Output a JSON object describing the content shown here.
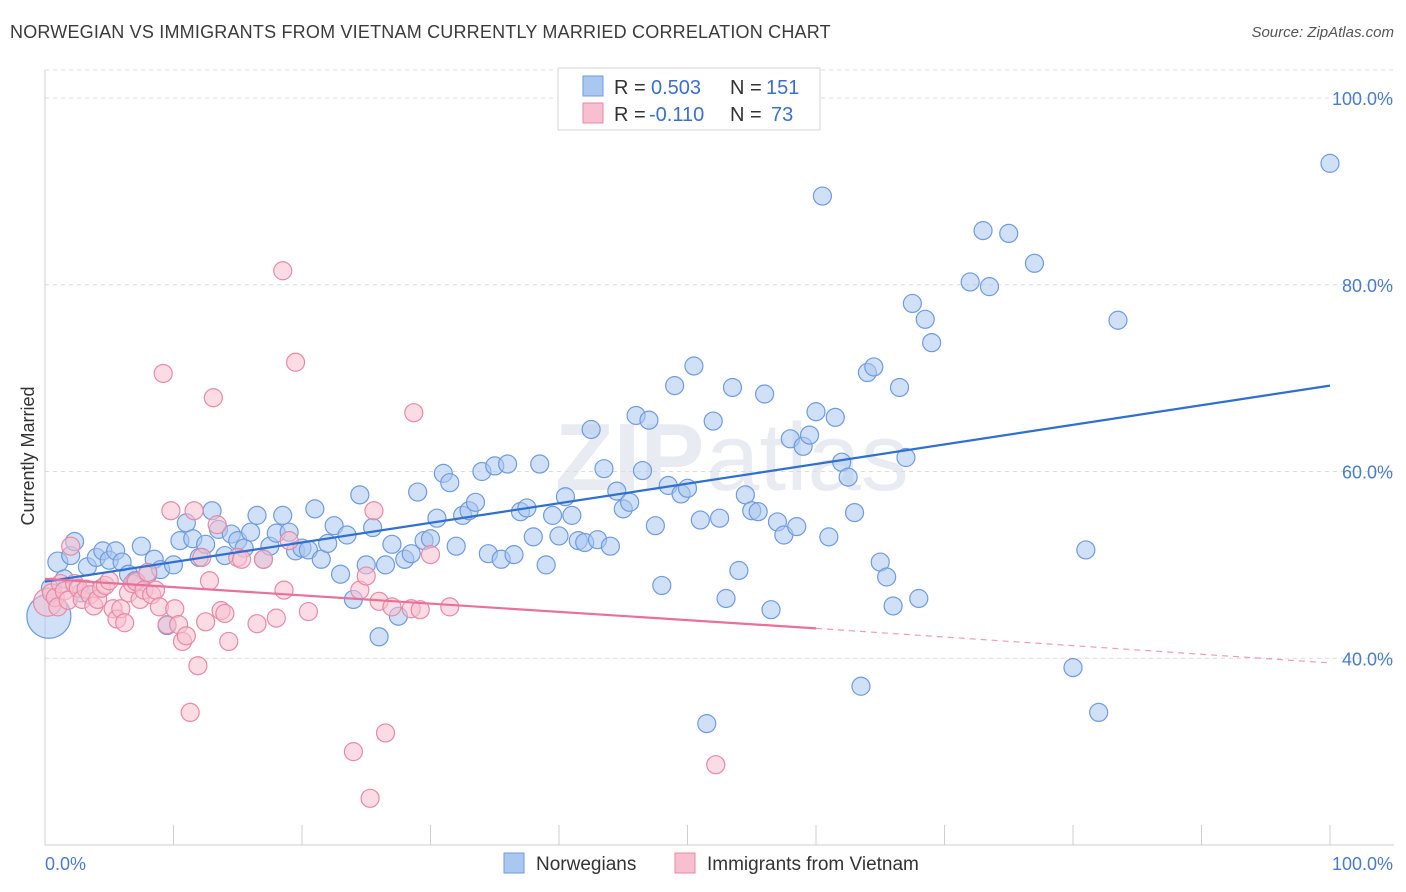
{
  "header": {
    "title": "NORWEGIAN VS IMMIGRANTS FROM VIETNAM CURRENTLY MARRIED CORRELATION CHART",
    "source": "Source: ZipAtlas.com"
  },
  "watermark": {
    "part1": "ZIP",
    "part2": "atlas"
  },
  "legend": {
    "rows": [
      {
        "r_label": "R =",
        "r_value": "0.503",
        "n_label": "N =",
        "n_value": "151",
        "color": "#a9c7f0",
        "stroke": "#6f9be0"
      },
      {
        "r_label": "R =",
        "r_value": "-0.110",
        "n_label": "N =",
        "n_value": "73",
        "color": "#f8bfd0",
        "stroke": "#e68aa6"
      }
    ]
  },
  "bottom_legend": [
    {
      "label": "Norwegians",
      "color": "#a9c7f0",
      "stroke": "#6f9be0"
    },
    {
      "label": "Immigrants from Vietnam",
      "color": "#f8bfd0",
      "stroke": "#e68aa6"
    }
  ],
  "chart_data": {
    "type": "scatter",
    "title": "NORWEGIAN VS IMMIGRANTS FROM VIETNAM CURRENTLY MARRIED CORRELATION CHART",
    "xlabel": "",
    "ylabel": "Currently Married",
    "x_tick_labels": [
      "0.0%",
      "100.0%"
    ],
    "y_tick_labels": [
      "40.0%",
      "60.0%",
      "80.0%",
      "100.0%"
    ],
    "y_ticks": [
      40,
      60,
      80,
      100
    ],
    "xlim": [
      0,
      100
    ],
    "ylim": [
      20,
      103
    ],
    "grid": true,
    "legend_position": "top-center",
    "series": [
      {
        "name": "Norwegians",
        "color": "#a9c7f0",
        "stroke": "#6f9be0",
        "trend": {
          "x": [
            0,
            100
          ],
          "y": [
            48.2,
            69.2
          ],
          "color": "#2e6fd1"
        },
        "points": [
          [
            0.3,
            44.5,
            22
          ],
          [
            0.5,
            47.5,
            10
          ],
          [
            1.0,
            50.3,
            10
          ],
          [
            1.5,
            48.5,
            9
          ],
          [
            2.0,
            51.0,
            9
          ],
          [
            2.3,
            52.5,
            9
          ],
          [
            2.8,
            47.0,
            9
          ],
          [
            3.3,
            49.8,
            9
          ],
          [
            4.0,
            50.8,
            9
          ],
          [
            4.5,
            51.5,
            9
          ],
          [
            5.0,
            50.5,
            9
          ],
          [
            5.5,
            51.5,
            9
          ],
          [
            6.0,
            50.3,
            9
          ],
          [
            6.5,
            49.0,
            9
          ],
          [
            7.0,
            48.3,
            9
          ],
          [
            7.5,
            52.0,
            9
          ],
          [
            8.0,
            49.0,
            9
          ],
          [
            8.5,
            50.6,
            9
          ],
          [
            9.0,
            49.5,
            9
          ],
          [
            9.5,
            43.5,
            9
          ],
          [
            10.0,
            50.0,
            9
          ],
          [
            10.5,
            52.6,
            9
          ],
          [
            11.0,
            54.5,
            9
          ],
          [
            11.5,
            52.8,
            9
          ],
          [
            12.0,
            50.8,
            9
          ],
          [
            12.5,
            52.2,
            9
          ],
          [
            13.0,
            55.8,
            9
          ],
          [
            13.5,
            53.8,
            9
          ],
          [
            14.0,
            51.0,
            9
          ],
          [
            14.5,
            53.3,
            9
          ],
          [
            15.0,
            52.6,
            9
          ],
          [
            15.5,
            51.8,
            9
          ],
          [
            16.0,
            53.5,
            9
          ],
          [
            16.5,
            55.3,
            9
          ],
          [
            17.0,
            50.6,
            9
          ],
          [
            17.5,
            52.0,
            9
          ],
          [
            18.0,
            53.4,
            9
          ],
          [
            18.5,
            55.3,
            9
          ],
          [
            19.0,
            53.5,
            9
          ],
          [
            19.5,
            51.5,
            9
          ],
          [
            20.0,
            51.8,
            9
          ],
          [
            20.5,
            51.6,
            9
          ],
          [
            21.0,
            56.0,
            9
          ],
          [
            21.5,
            50.6,
            9
          ],
          [
            22.0,
            52.3,
            9
          ],
          [
            22.5,
            54.2,
            9
          ],
          [
            23.0,
            49.0,
            9
          ],
          [
            23.5,
            53.2,
            9
          ],
          [
            24.0,
            46.3,
            9
          ],
          [
            24.5,
            57.5,
            9
          ],
          [
            25.0,
            50.0,
            9
          ],
          [
            25.5,
            54.0,
            9
          ],
          [
            26.0,
            42.3,
            9
          ],
          [
            26.5,
            50.0,
            9
          ],
          [
            27.0,
            52.2,
            9
          ],
          [
            27.5,
            44.5,
            9
          ],
          [
            28.0,
            50.6,
            9
          ],
          [
            28.5,
            51.2,
            9
          ],
          [
            29.0,
            57.8,
            9
          ],
          [
            29.5,
            52.6,
            9
          ],
          [
            30.0,
            52.8,
            9
          ],
          [
            30.5,
            55.0,
            9
          ],
          [
            31.0,
            59.8,
            9
          ],
          [
            31.5,
            58.8,
            9
          ],
          [
            32.0,
            52.0,
            9
          ],
          [
            32.5,
            55.3,
            9
          ],
          [
            33.0,
            55.8,
            9
          ],
          [
            33.5,
            56.7,
            9
          ],
          [
            34.0,
            60.0,
            9
          ],
          [
            34.5,
            51.2,
            9
          ],
          [
            35.0,
            60.6,
            9
          ],
          [
            35.5,
            50.6,
            9
          ],
          [
            36.0,
            60.8,
            9
          ],
          [
            36.5,
            51.1,
            9
          ],
          [
            37.0,
            55.7,
            9
          ],
          [
            37.5,
            56.1,
            9
          ],
          [
            38.0,
            53.0,
            9
          ],
          [
            38.5,
            60.8,
            9
          ],
          [
            39.0,
            50.0,
            9
          ],
          [
            39.5,
            55.3,
            9
          ],
          [
            40.0,
            53.1,
            9
          ],
          [
            40.5,
            57.3,
            9
          ],
          [
            41.0,
            55.3,
            9
          ],
          [
            41.5,
            52.6,
            9
          ],
          [
            42.0,
            52.4,
            9
          ],
          [
            42.5,
            64.5,
            9
          ],
          [
            43.0,
            52.7,
            9
          ],
          [
            43.5,
            60.3,
            9
          ],
          [
            44.0,
            52.0,
            9
          ],
          [
            44.5,
            57.9,
            9
          ],
          [
            45.0,
            56.0,
            9
          ],
          [
            45.5,
            56.7,
            9
          ],
          [
            46.0,
            66.0,
            9
          ],
          [
            46.5,
            60.1,
            9
          ],
          [
            47.0,
            65.5,
            9
          ],
          [
            47.5,
            54.2,
            9
          ],
          [
            48.0,
            47.8,
            9
          ],
          [
            48.5,
            58.5,
            9
          ],
          [
            49.0,
            69.2,
            9
          ],
          [
            49.5,
            57.6,
            9
          ],
          [
            50.0,
            58.2,
            9
          ],
          [
            50.5,
            71.3,
            9
          ],
          [
            51.0,
            54.8,
            9
          ],
          [
            51.5,
            33.0,
            9
          ],
          [
            52.0,
            65.4,
            9
          ],
          [
            52.5,
            55.0,
            9
          ],
          [
            53.0,
            46.4,
            9
          ],
          [
            53.5,
            69.0,
            9
          ],
          [
            54.0,
            49.4,
            9
          ],
          [
            54.5,
            57.5,
            9
          ],
          [
            55.0,
            55.8,
            9
          ],
          [
            55.5,
            55.7,
            9
          ],
          [
            56.0,
            68.3,
            9
          ],
          [
            56.5,
            45.2,
            9
          ],
          [
            57.0,
            54.6,
            9
          ],
          [
            57.5,
            53.2,
            9
          ],
          [
            58.0,
            63.5,
            9
          ],
          [
            58.5,
            54.1,
            9
          ],
          [
            59.0,
            62.7,
            9
          ],
          [
            59.5,
            63.9,
            9
          ],
          [
            60.0,
            66.4,
            9
          ],
          [
            60.5,
            89.5,
            9
          ],
          [
            61.0,
            53.0,
            9
          ],
          [
            61.5,
            65.8,
            9
          ],
          [
            62.0,
            61.0,
            9
          ],
          [
            62.5,
            59.4,
            9
          ],
          [
            63.0,
            55.6,
            9
          ],
          [
            63.5,
            37.0,
            9
          ],
          [
            64.0,
            70.6,
            9
          ],
          [
            64.5,
            71.2,
            9
          ],
          [
            65.0,
            50.3,
            9
          ],
          [
            65.5,
            48.7,
            9
          ],
          [
            66.0,
            45.6,
            9
          ],
          [
            66.5,
            69.0,
            9
          ],
          [
            67.0,
            61.5,
            9
          ],
          [
            67.5,
            78.0,
            9
          ],
          [
            68.0,
            46.4,
            9
          ],
          [
            68.5,
            76.3,
            9
          ],
          [
            69.0,
            73.8,
            9
          ],
          [
            72.0,
            80.3,
            9
          ],
          [
            73.0,
            85.8,
            9
          ],
          [
            73.5,
            79.8,
            9
          ],
          [
            75.0,
            85.5,
            9
          ],
          [
            77.0,
            82.3,
            9
          ],
          [
            80.0,
            39.0,
            9
          ],
          [
            81.0,
            51.6,
            9
          ],
          [
            82.0,
            34.2,
            9
          ],
          [
            83.5,
            76.2,
            9
          ],
          [
            100.0,
            93.0,
            9
          ]
        ]
      },
      {
        "name": "Immigrants from Vietnam",
        "color": "#f8bfd0",
        "stroke": "#e68aa6",
        "trend": {
          "x": [
            0,
            60
          ],
          "y": [
            48.5,
            43.2
          ],
          "color": "#e8709a",
          "dashed_extension": {
            "x": [
              60,
              100
            ],
            "y": [
              43.2,
              39.5
            ]
          }
        },
        "points": [
          [
            0.2,
            46.0,
            14
          ],
          [
            0.5,
            47.0,
            9
          ],
          [
            0.8,
            46.5,
            9
          ],
          [
            1.0,
            45.5,
            9
          ],
          [
            1.2,
            48.0,
            9
          ],
          [
            1.5,
            47.2,
            9
          ],
          [
            1.8,
            46.2,
            9
          ],
          [
            2.0,
            52.0,
            9
          ],
          [
            2.3,
            48.0,
            9
          ],
          [
            2.6,
            47.5,
            9
          ],
          [
            2.9,
            46.3,
            9
          ],
          [
            3.2,
            47.4,
            9
          ],
          [
            3.5,
            46.8,
            9
          ],
          [
            3.8,
            45.6,
            9
          ],
          [
            4.1,
            46.3,
            9
          ],
          [
            4.4,
            47.5,
            9
          ],
          [
            4.7,
            47.8,
            9
          ],
          [
            5.0,
            48.3,
            9
          ],
          [
            5.3,
            45.3,
            9
          ],
          [
            5.6,
            44.2,
            9
          ],
          [
            5.9,
            45.3,
            9
          ],
          [
            6.2,
            43.8,
            9
          ],
          [
            6.5,
            47.0,
            9
          ],
          [
            6.8,
            48.0,
            9
          ],
          [
            7.1,
            48.2,
            9
          ],
          [
            7.4,
            46.3,
            9
          ],
          [
            7.7,
            47.3,
            9
          ],
          [
            8.0,
            49.2,
            9
          ],
          [
            8.3,
            46.8,
            9
          ],
          [
            8.6,
            47.3,
            9
          ],
          [
            8.9,
            45.5,
            9
          ],
          [
            9.2,
            70.5,
            9
          ],
          [
            9.5,
            43.6,
            9
          ],
          [
            9.8,
            55.8,
            9
          ],
          [
            10.1,
            45.3,
            9
          ],
          [
            10.4,
            43.6,
            9
          ],
          [
            10.7,
            41.8,
            9
          ],
          [
            11.0,
            42.4,
            9
          ],
          [
            11.3,
            34.2,
            9
          ],
          [
            11.6,
            55.8,
            9
          ],
          [
            11.9,
            39.2,
            9
          ],
          [
            12.2,
            50.8,
            9
          ],
          [
            12.5,
            43.9,
            9
          ],
          [
            12.8,
            48.3,
            9
          ],
          [
            13.1,
            67.9,
            9
          ],
          [
            13.4,
            54.3,
            9
          ],
          [
            13.7,
            45.1,
            9
          ],
          [
            14.0,
            44.8,
            9
          ],
          [
            14.3,
            41.8,
            9
          ],
          [
            15.0,
            50.8,
            9
          ],
          [
            15.3,
            50.6,
            9
          ],
          [
            16.5,
            43.7,
            9
          ],
          [
            17.0,
            50.6,
            9
          ],
          [
            18.0,
            44.3,
            9
          ],
          [
            18.5,
            81.5,
            9
          ],
          [
            18.6,
            47.3,
            9
          ],
          [
            19.0,
            52.6,
            9
          ],
          [
            19.5,
            71.7,
            9
          ],
          [
            20.5,
            45.0,
            9
          ],
          [
            24.0,
            30.0,
            9
          ],
          [
            24.5,
            47.3,
            9
          ],
          [
            25.0,
            48.8,
            9
          ],
          [
            25.3,
            25.0,
            9
          ],
          [
            25.6,
            55.8,
            9
          ],
          [
            26.0,
            46.1,
            9
          ],
          [
            26.5,
            32.0,
            9
          ],
          [
            27.0,
            45.5,
            9
          ],
          [
            28.5,
            45.3,
            9
          ],
          [
            28.7,
            66.3,
            9
          ],
          [
            29.2,
            45.2,
            9
          ],
          [
            30.0,
            51.1,
            9
          ],
          [
            31.5,
            45.5,
            9
          ],
          [
            52.2,
            28.6,
            9
          ]
        ]
      }
    ]
  }
}
